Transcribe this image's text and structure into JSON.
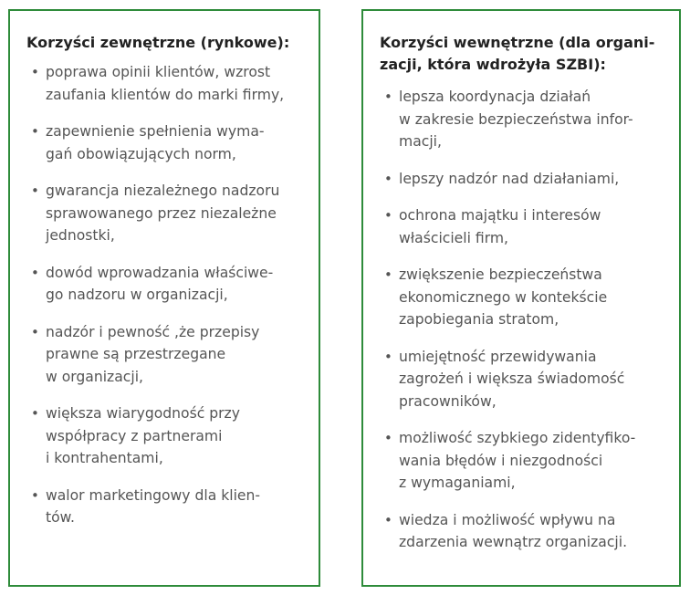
{
  "left_panel": {
    "heading": "Korzyści zewnętrzne (rynkowe):",
    "items": [
      "poprawa opinii klientów, wzrost\nzaufania klientów do marki firmy,",
      "zapewnienie spełnienia wyma-\ngań obowiązujących norm,",
      "gwarancja niezależnego nadzoru\nsprawowanego przez niezależne\njednostki,",
      "dowód wprowadzania właściwe-\ngo nadzoru w organizacji,",
      "nadzór i pewność ,że przepisy\nprawne są przestrzegane\nw organizacji,",
      "większa wiarygodność przy\nwspółpracy z partnerami\ni kontrahentami,",
      "walor marketingowy dla klien-\ntów."
    ]
  },
  "right_panel": {
    "heading": "Korzyści wewnętrzne (dla organi-\nzacji, która wdrożyła SZBI):",
    "items": [
      "lepsza koordynacja działań\nw zakresie bezpieczeństwa infor-\nmacji,",
      "lepszy nadzór nad działaniami,",
      "ochrona majątku i interesów\nwłaścicieli firm,",
      "zwiększenie bezpieczeństwa\nekonomicznego w kontekście\nzapobiegania stratom,",
      "umiejętność przewidywania\nzagrożeń i większa świadomość\npracowników,",
      "możliwość szybkiego zidentyfiko-\nwania błędów i niezgodności\nz wymaganiami,",
      "wiedza i możliwość wpływu na\nzdarzenia wewnątrz organizacji."
    ]
  },
  "bullet_glyph": "•",
  "colors": {
    "border": "#2e8b3a",
    "heading_text": "#222222",
    "body_text": "#555555"
  }
}
